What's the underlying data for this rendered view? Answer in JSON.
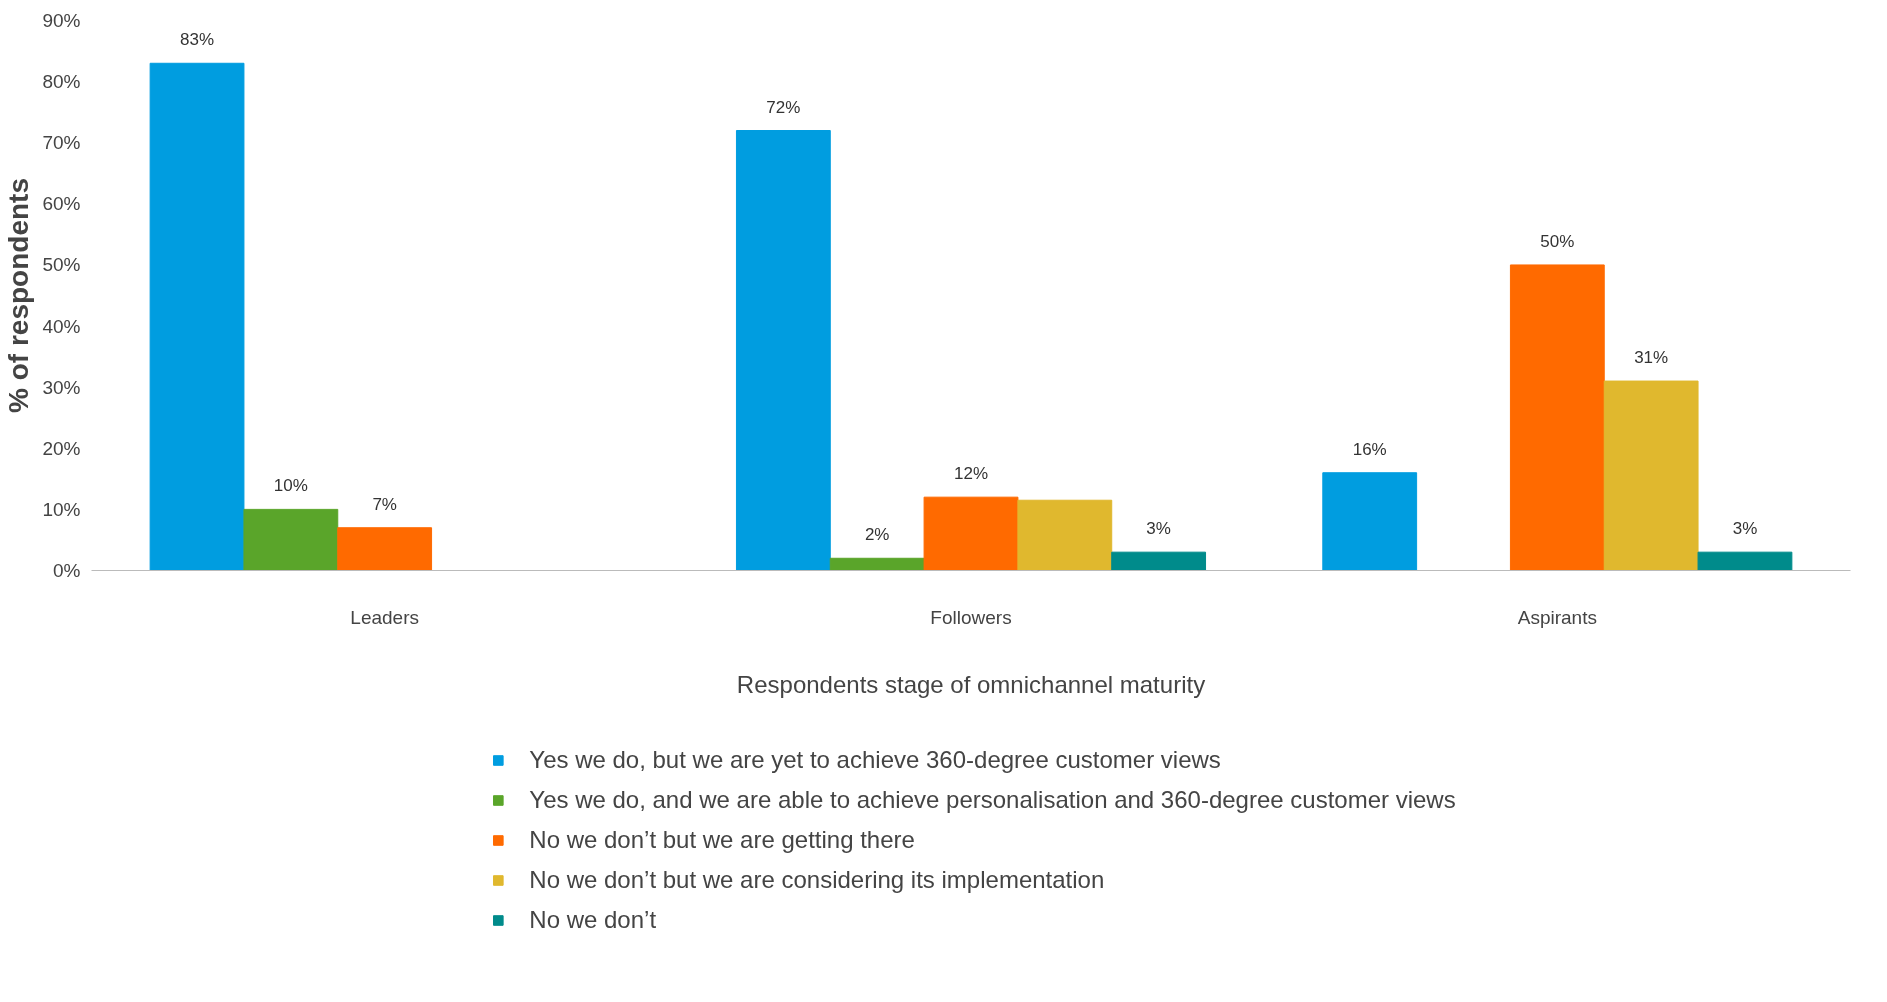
{
  "chart_data": {
    "type": "bar",
    "xlabel": "Respondents stage of omnichannel maturity",
    "ylabel": "% of respondents",
    "categories": [
      "Leaders",
      "Followers",
      "Aspirants"
    ],
    "series": [
      {
        "name": "Yes we do, but we are yet to achieve 360-degree customer views",
        "color": "#009de0",
        "values": [
          83,
          72,
          16
        ],
        "value_labels": [
          "83%",
          "72%",
          "16%"
        ]
      },
      {
        "name": "Yes we do, and we are able to achieve personalisation and 360-degree customer views",
        "color": "#5aa52a",
        "values": [
          10,
          2,
          null
        ],
        "value_labels": [
          "10%",
          "2%",
          null
        ]
      },
      {
        "name": "No we don’t but we are getting there",
        "color": "#ff6a00",
        "values": [
          7,
          12,
          50
        ],
        "value_labels": [
          "7%",
          "12%",
          "50%"
        ]
      },
      {
        "name": "No we don’t but we are considering its implementation",
        "color": "#e0b82e",
        "values": [
          null,
          11.5,
          31
        ],
        "value_labels": [
          null,
          null,
          "31%"
        ]
      },
      {
        "name": "No we don’t",
        "color": "#008b8b",
        "values": [
          null,
          3,
          3
        ],
        "value_labels": [
          null,
          "3%",
          "3%"
        ]
      }
    ],
    "ylim": [
      0,
      90
    ],
    "yticks": [
      {
        "value": 0,
        "label": "0%"
      },
      {
        "value": 10,
        "label": "10%"
      },
      {
        "value": 20,
        "label": "20%"
      },
      {
        "value": 30,
        "label": "30%"
      },
      {
        "value": 40,
        "label": "40%"
      },
      {
        "value": 50,
        "label": "50%"
      },
      {
        "value": 60,
        "label": "60%"
      },
      {
        "value": 70,
        "label": "70%"
      },
      {
        "value": 80,
        "label": "80%"
      },
      {
        "value": 90,
        "label": "90%"
      }
    ],
    "grid": false,
    "legend": "bottom"
  }
}
